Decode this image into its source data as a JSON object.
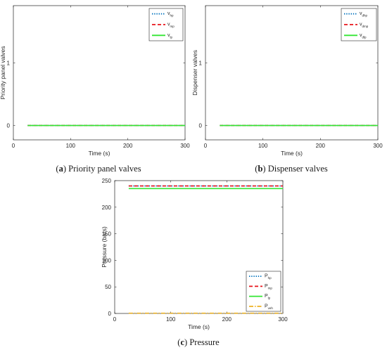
{
  "chart_data": [
    {
      "type": "line",
      "caption": {
        "letter": "(a)",
        "text": " Priority panel valves"
      },
      "ylabel": "Priority panel valves",
      "xlabel": "Time (s)",
      "xlim": [
        0,
        300
      ],
      "ylim": [
        -0.23,
        1.92
      ],
      "xticks": [
        "0",
        "100",
        "200",
        "300"
      ],
      "yticks": [
        "0",
        "1"
      ],
      "x": [
        25,
        300
      ],
      "legend_position": "top-right",
      "series": [
        {
          "name": "v",
          "sub": "hp",
          "values": [
            0,
            0
          ],
          "color": "#0072BD",
          "style": "dotted"
        },
        {
          "name": "v",
          "sub": "mp",
          "values": [
            0,
            0
          ],
          "color": "#E8141B",
          "style": "dashed"
        },
        {
          "name": "v",
          "sub": "lp",
          "values": [
            0,
            0
          ],
          "color": "#33E633",
          "style": "solid"
        }
      ]
    },
    {
      "type": "line",
      "caption": {
        "letter": "(b)",
        "text": " Dispenser valves"
      },
      "ylabel": "Dispenser valves",
      "xlabel": "Time (s)",
      "xlim": [
        0,
        300
      ],
      "ylim": [
        -0.23,
        1.92
      ],
      "xticks": [
        "0",
        "100",
        "200",
        "300"
      ],
      "yticks": [
        "0",
        "1"
      ],
      "x": [
        25,
        300
      ],
      "legend_position": "top-right",
      "series": [
        {
          "name": "v",
          "sub": "dhp",
          "values": [
            0,
            0
          ],
          "color": "#0072BD",
          "style": "dotted"
        },
        {
          "name": "v",
          "sub": "dmp",
          "values": [
            0,
            0
          ],
          "color": "#E8141B",
          "style": "dashed"
        },
        {
          "name": "v",
          "sub": "dlp",
          "values": [
            0,
            0
          ],
          "color": "#33E633",
          "style": "solid"
        }
      ]
    },
    {
      "type": "line",
      "caption": {
        "letter": "(c)",
        "text": " Pressure"
      },
      "ylabel": "Pressure (bars)",
      "xlabel": "Time (s)",
      "xlim": [
        0,
        300
      ],
      "ylim": [
        0,
        250
      ],
      "xticks": [
        "0",
        "100",
        "200",
        "300"
      ],
      "yticks": [
        "0",
        "50",
        "100",
        "150",
        "200",
        "250"
      ],
      "x": [
        25,
        300
      ],
      "legend_position": "bottom-right",
      "series": [
        {
          "name": "P",
          "sub": "hp",
          "values": [
            240,
            240
          ],
          "color": "#0072BD",
          "style": "dotted"
        },
        {
          "name": "P",
          "sub": "mp",
          "values": [
            240,
            240
          ],
          "color": "#E8141B",
          "style": "dashed"
        },
        {
          "name": "P",
          "sub": "lp",
          "values": [
            235,
            235
          ],
          "color": "#33E633",
          "style": "solid"
        },
        {
          "name": "P",
          "sub": "veh",
          "values": [
            0.5,
            0.5
          ],
          "color": "#EDB120",
          "style": "dashdot"
        }
      ]
    }
  ]
}
